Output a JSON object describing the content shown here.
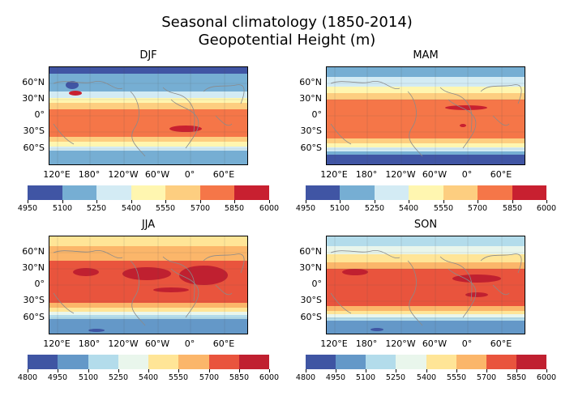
{
  "figure": {
    "title_line1": "Seasonal climatology  (1850-2014)",
    "title_line2": "Geopotential Height (m)"
  },
  "axes": {
    "lat_labels": [
      "60°N",
      "30°N",
      "0°",
      "30°S",
      "60°S"
    ],
    "lon_labels": [
      "120°E",
      "180°",
      "120°W",
      "60°W",
      "0°",
      "60°E"
    ]
  },
  "chart_data": [
    {
      "type": "heatmap",
      "title": "DJF",
      "levels": [
        4950,
        5100,
        5250,
        5400,
        5550,
        5700,
        5850,
        6000
      ],
      "colors": [
        "#4055a4",
        "#76aed3",
        "#d3ebf4",
        "#fff6b0",
        "#fdce80",
        "#f57648",
        "#c82030"
      ],
      "colorbar_ticks": [
        "4950",
        "5100",
        "5250",
        "5400",
        "5550",
        "5700",
        "5850",
        "6000"
      ]
    },
    {
      "type": "heatmap",
      "title": "MAM",
      "levels": [
        4950,
        5100,
        5250,
        5400,
        5550,
        5700,
        5850,
        6000
      ],
      "colors": [
        "#4055a4",
        "#76aed3",
        "#d3ebf4",
        "#fff6b0",
        "#fdce80",
        "#f57648",
        "#c82030"
      ],
      "colorbar_ticks": [
        "4950",
        "5100",
        "5250",
        "5400",
        "5550",
        "5700",
        "5850",
        "6000"
      ]
    },
    {
      "type": "heatmap",
      "title": "JJA",
      "levels": [
        4800,
        4950,
        5100,
        5250,
        5400,
        5550,
        5700,
        5850,
        6000
      ],
      "colors": [
        "#3f55a3",
        "#6498c8",
        "#b3dceb",
        "#e9f6ec",
        "#ffe597",
        "#fbb66a",
        "#e9543d",
        "#c02030"
      ],
      "colorbar_ticks": [
        "4800",
        "4950",
        "5100",
        "5250",
        "5400",
        "5550",
        "5700",
        "5850",
        "6000"
      ]
    },
    {
      "type": "heatmap",
      "title": "SON",
      "levels": [
        4800,
        4950,
        5100,
        5250,
        5400,
        5550,
        5700,
        5850,
        6000
      ],
      "colors": [
        "#3f55a3",
        "#6498c8",
        "#b3dceb",
        "#e9f6ec",
        "#ffe597",
        "#fbb66a",
        "#e9543d",
        "#c02030"
      ],
      "colorbar_ticks": [
        "4800",
        "4950",
        "5100",
        "5250",
        "5400",
        "5550",
        "5700",
        "5850",
        "6000"
      ]
    }
  ]
}
